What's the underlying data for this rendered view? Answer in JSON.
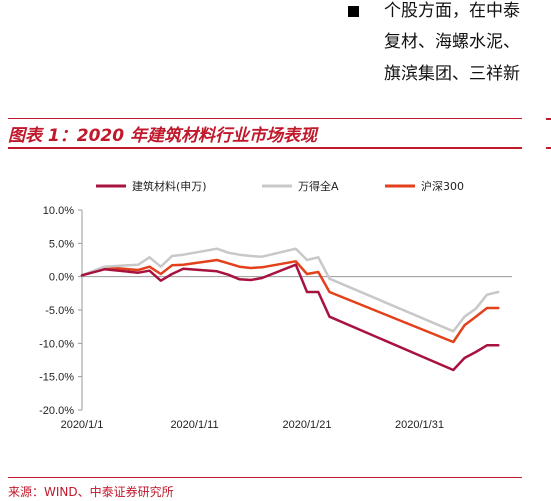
{
  "text": {
    "line1": "个股方面，在中泰",
    "line2": "复材、海螺水泥、",
    "line3": "旗滨集团、三祥新"
  },
  "figure": {
    "title": "图表 1：2020 年建筑材料行业市场表现",
    "source": "来源：WIND、中泰证券研究所"
  },
  "colors": {
    "accent": "#c0192c"
  },
  "chart_data": {
    "type": "line",
    "title": "",
    "xlabel": "",
    "ylabel": "",
    "ylim": [
      -20,
      10
    ],
    "yticks": [
      10,
      5,
      0,
      -5,
      -10,
      -15,
      -20
    ],
    "ytick_labels": [
      "10.0%",
      "5.0%",
      "0.0%",
      "-5.0%",
      "-10.0%",
      "-15.0%",
      "-20.0%"
    ],
    "xtick_labels": [
      "2020/1/1",
      "2020/1/11",
      "2020/1/21",
      "2020/1/31"
    ],
    "legend_position": "top",
    "x": [
      "2020/1/1",
      "2020/1/3",
      "2020/1/6",
      "2020/1/7",
      "2020/1/8",
      "2020/1/9",
      "2020/1/10",
      "2020/1/13",
      "2020/1/14",
      "2020/1/15",
      "2020/1/16",
      "2020/1/17",
      "2020/1/20",
      "2020/1/21",
      "2020/1/22",
      "2020/1/23",
      "2020/2/3",
      "2020/2/4",
      "2020/2/5",
      "2020/2/6",
      "2020/2/7"
    ],
    "series": [
      {
        "name": "建筑材料(申万)",
        "color": "#a8123f",
        "values": [
          0.2,
          1.1,
          0.6,
          0.9,
          -0.6,
          0.4,
          1.2,
          0.8,
          0.3,
          -0.4,
          -0.5,
          -0.2,
          1.8,
          -2.3,
          -2.3,
          -6.0,
          -14.0,
          -12.2,
          -11.3,
          -10.3,
          -10.3
        ]
      },
      {
        "name": "万得全A",
        "color": "#c8c8c8",
        "values": [
          0.2,
          1.5,
          1.8,
          2.9,
          1.5,
          3.1,
          3.3,
          4.2,
          3.6,
          3.3,
          3.1,
          3.0,
          4.2,
          2.5,
          2.9,
          -0.3,
          -8.2,
          -6.0,
          -4.8,
          -2.7,
          -2.3
        ]
      },
      {
        "name": "沪深300",
        "color": "#e2411c",
        "values": [
          0.2,
          1.4,
          1.0,
          1.5,
          0.4,
          1.7,
          1.8,
          2.5,
          2.0,
          1.5,
          1.3,
          1.4,
          2.3,
          0.4,
          0.7,
          -2.3,
          -9.8,
          -7.3,
          -6.0,
          -4.7,
          -4.7
        ]
      }
    ]
  }
}
